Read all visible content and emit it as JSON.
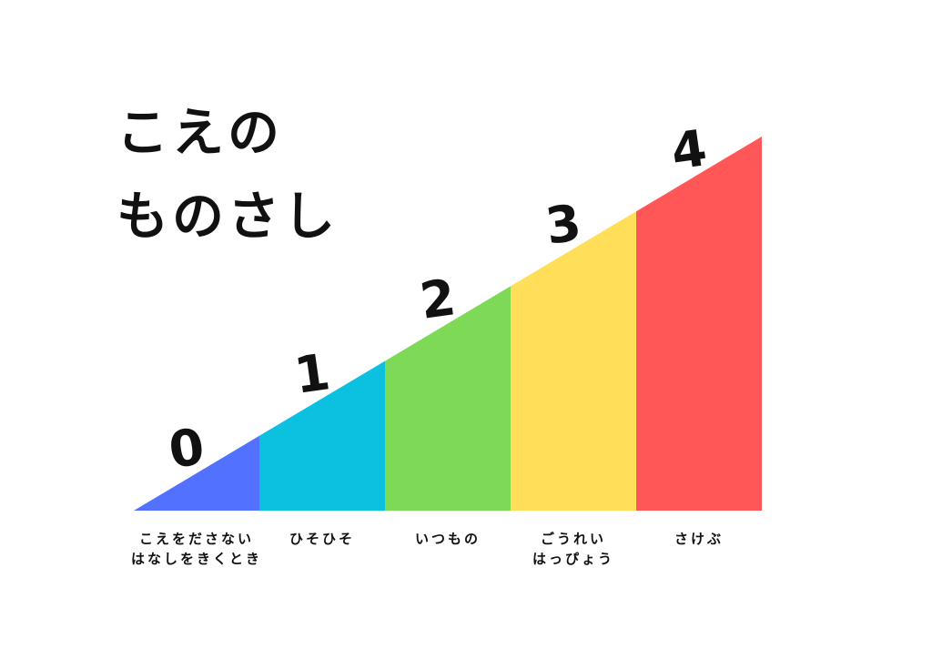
{
  "page": {
    "background_color": "#ffffff",
    "text_color": "#111111"
  },
  "title": {
    "line1": "こえの",
    "line2": "ものさし"
  },
  "chart_data": {
    "type": "area",
    "title": "こえの ものさし",
    "categories": [
      "こえをださない はなしをきくとき",
      "ひそひそ",
      "いつもの",
      "ごうれい はっぴょう",
      "さけぶ"
    ],
    "values": [
      0,
      1,
      2,
      3,
      4
    ],
    "colors": [
      "#5271ff",
      "#0cc0df",
      "#7ed957",
      "#ffde59",
      "#ff5757"
    ],
    "xlabel": "",
    "ylabel": "",
    "ylim": [
      0,
      4
    ],
    "grid": false,
    "legend": "none",
    "layout_hint": "right-triangle ramp rising from left apex to top-right, split into 5 vertical color bands; level numbers sit above the hypotenuse; category labels sit under the base",
    "levels": [
      {
        "value": "0",
        "color": "#5271ff",
        "label_lines": [
          "こえをださない",
          "はなしをきくとき"
        ]
      },
      {
        "value": "1",
        "color": "#0cc0df",
        "label_lines": [
          "ひそひそ"
        ]
      },
      {
        "value": "2",
        "color": "#7ed957",
        "label_lines": [
          "いつもの"
        ]
      },
      {
        "value": "3",
        "color": "#ffde59",
        "label_lines": [
          "ごうれい",
          "はっぴょう"
        ]
      },
      {
        "value": "4",
        "color": "#ff5757",
        "label_lines": [
          "さけぶ"
        ]
      }
    ]
  }
}
